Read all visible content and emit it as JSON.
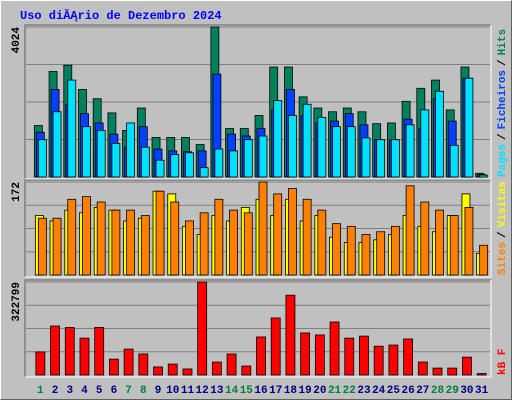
{
  "chart_data": [
    {
      "type": "bar",
      "title": "Uso diĂĄrio de Dezembro 2024",
      "title_color": "#0000ff",
      "series": [
        {
          "name": "Hits",
          "color": "#00805c",
          "values": [
            1380,
            2830,
            3000,
            2350,
            2100,
            1720,
            1250,
            1850,
            1060,
            1060,
            1060,
            870,
            4024,
            1300,
            1300,
            1650,
            2950,
            2950,
            2150,
            1850,
            1750,
            1850,
            1750,
            1430,
            1450,
            2030,
            2380,
            2600,
            1800,
            2950,
            100
          ]
        },
        {
          "name": "Ficheiros",
          "color": "#0040ff",
          "values": [
            1200,
            2350,
            1950,
            1700,
            1450,
            1150,
            800,
            1350,
            750,
            700,
            680,
            700,
            2760,
            1150,
            1100,
            1300,
            1800,
            2350,
            1650,
            1450,
            1500,
            1700,
            1400,
            1000,
            1000,
            1550,
            1300,
            2100,
            1500,
            2650,
            70
          ]
        },
        {
          "name": "Pages",
          "color": "#00e0ff",
          "values": [
            1000,
            1750,
            2600,
            1350,
            1250,
            900,
            1450,
            800,
            450,
            600,
            650,
            250,
            750,
            700,
            1000,
            1100,
            2050,
            1650,
            1950,
            1600,
            1350,
            1350,
            1050,
            1000,
            1000,
            1400,
            1800,
            2300,
            850,
            2650,
            50
          ]
        }
      ],
      "legend_separator": "/",
      "ylim": [
        0,
        4024
      ],
      "yticks": [
        4024
      ]
    },
    {
      "type": "bar",
      "series": [
        {
          "name": "Visitas",
          "color": "#ffff00",
          "values": [
            110,
            100,
            120,
            115,
            125,
            120,
            100,
            105,
            155,
            150,
            90,
            75,
            110,
            100,
            125,
            140,
            110,
            140,
            100,
            110,
            70,
            60,
            60,
            65,
            75,
            110,
            90,
            80,
            110,
            150,
            40
          ]
        },
        {
          "name": "Sites",
          "color": "#ff8000",
          "values": [
            105,
            105,
            140,
            145,
            135,
            120,
            120,
            110,
            155,
            135,
            100,
            115,
            140,
            120,
            115,
            172,
            150,
            160,
            140,
            120,
            95,
            90,
            75,
            80,
            90,
            165,
            135,
            120,
            110,
            125,
            55
          ]
        }
      ],
      "legend_separator": "/",
      "ylim": [
        0,
        172
      ],
      "yticks": [
        172
      ]
    },
    {
      "type": "bar",
      "categories": [
        "1",
        "2",
        "3",
        "4",
        "5",
        "6",
        "7",
        "8",
        "9",
        "10",
        "11",
        "12",
        "13",
        "14",
        "15",
        "16",
        "17",
        "18",
        "19",
        "20",
        "21",
        "22",
        "23",
        "24",
        "25",
        "26",
        "27",
        "28",
        "29",
        "30",
        "31"
      ],
      "category_colors": [
        "#008040",
        "#000080",
        "#000080",
        "#000080",
        "#000080",
        "#000080",
        "#008040",
        "#008040",
        "#000080",
        "#000080",
        "#000080",
        "#000080",
        "#000080",
        "#008040",
        "#008040",
        "#000080",
        "#000080",
        "#000080",
        "#000080",
        "#000080",
        "#008040",
        "#008040",
        "#000080",
        "#000080",
        "#000080",
        "#000080",
        "#000080",
        "#008040",
        "#008040",
        "#000080",
        "#000080"
      ],
      "series": [
        {
          "name": "kB F",
          "color": "#ff0000",
          "values": [
            80000,
            170000,
            165000,
            128000,
            165000,
            55000,
            90000,
            73000,
            28000,
            38000,
            21000,
            322799,
            45000,
            73000,
            31000,
            132000,
            198000,
            277000,
            146000,
            139000,
            184000,
            128000,
            135000,
            100000,
            104000,
            125000,
            45000,
            24000,
            24000,
            62000,
            5000
          ]
        }
      ],
      "legend_separator": "/",
      "ylim": [
        0,
        322799
      ],
      "yticks": [
        322799
      ]
    }
  ]
}
